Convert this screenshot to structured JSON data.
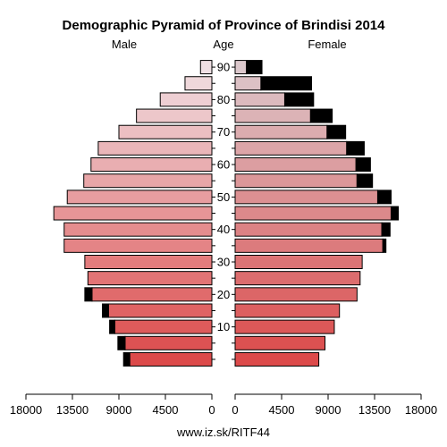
{
  "chart_data": {
    "type": "bar",
    "title": "Demographic Pyramid of Province of Brindisi 2014",
    "left_label": "Male",
    "center_label": "Age",
    "right_label": "Female",
    "source": "www.iz.sk/RITF44",
    "age_ticks": [
      "90",
      "80",
      "70",
      "60",
      "50",
      "40",
      "30",
      "20",
      "10"
    ],
    "x_ticks_left": [
      "18000",
      "13500",
      "9000",
      "4500",
      "0"
    ],
    "x_ticks_right": [
      "0",
      "4500",
      "9000",
      "13500",
      "18000"
    ],
    "xlim": [
      0,
      18000
    ],
    "age_groups": [
      "0-4",
      "5-9",
      "10-14",
      "15-19",
      "20-24",
      "25-29",
      "30-34",
      "35-39",
      "40-44",
      "45-49",
      "50-54",
      "55-59",
      "60-64",
      "65-69",
      "70-74",
      "75-79",
      "80-84",
      "85-89",
      "90+"
    ],
    "male_total": [
      8550,
      9100,
      9900,
      10600,
      12300,
      12000,
      12300,
      14300,
      14300,
      15300,
      14000,
      12400,
      11700,
      11000,
      9000,
      7300,
      5000,
      2600,
      1100
    ],
    "male_dark": [
      600,
      700,
      500,
      600,
      700,
      0,
      0,
      0,
      0,
      0,
      0,
      0,
      0,
      0,
      0,
      0,
      0,
      0,
      0
    ],
    "female_total": [
      8100,
      8700,
      9600,
      10100,
      11800,
      12100,
      12300,
      14600,
      15000,
      15800,
      15100,
      13300,
      13100,
      12500,
      10700,
      9400,
      7600,
      7400,
      2600
    ],
    "female_dark": [
      0,
      0,
      0,
      0,
      0,
      0,
      0,
      300,
      800,
      700,
      1300,
      1500,
      1400,
      1700,
      1800,
      2100,
      2800,
      4900,
      1500
    ],
    "colors": {
      "male_young": "#dc4a4a",
      "male_old": "#f0e0e4",
      "female_young": "#dc4a4a",
      "female_old": "#dcc8cc",
      "dark": "#000000"
    }
  }
}
